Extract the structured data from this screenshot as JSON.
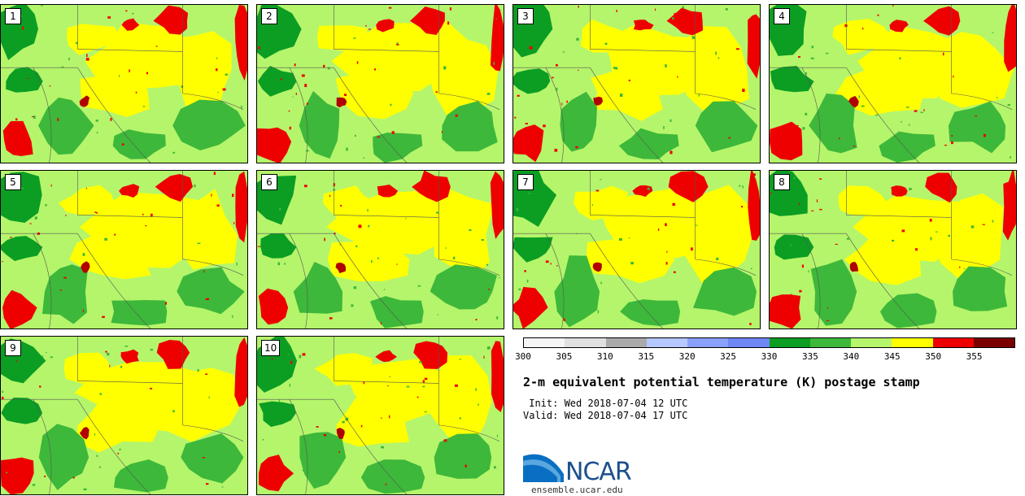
{
  "panels": [
    {
      "label": "1"
    },
    {
      "label": "2"
    },
    {
      "label": "3"
    },
    {
      "label": "4"
    },
    {
      "label": "5"
    },
    {
      "label": "6"
    },
    {
      "label": "7"
    },
    {
      "label": "8"
    },
    {
      "label": "9"
    },
    {
      "label": "10"
    }
  ],
  "colorbar": {
    "ticks": [
      "300",
      "305",
      "310",
      "315",
      "320",
      "325",
      "330",
      "335",
      "340",
      "345",
      "350",
      "355"
    ],
    "colors": [
      "#f5f5f5",
      "#e0e0e0",
      "#aaaaaa",
      "#b5c8ff",
      "#8aa0ff",
      "#6f86f5",
      "#0b9e23",
      "#3db83a",
      "#b5f56b",
      "#ffff00",
      "#ee0000",
      "#7a0000"
    ]
  },
  "title": "2-m equivalent potential temperature (K) postage stamp",
  "init": " Init: Wed 2018-07-04 12 UTC",
  "valid": "Valid: Wed 2018-07-04 17 UTC",
  "logo": {
    "name": "NCAR",
    "site": "ensemble.ucar.edu"
  }
}
